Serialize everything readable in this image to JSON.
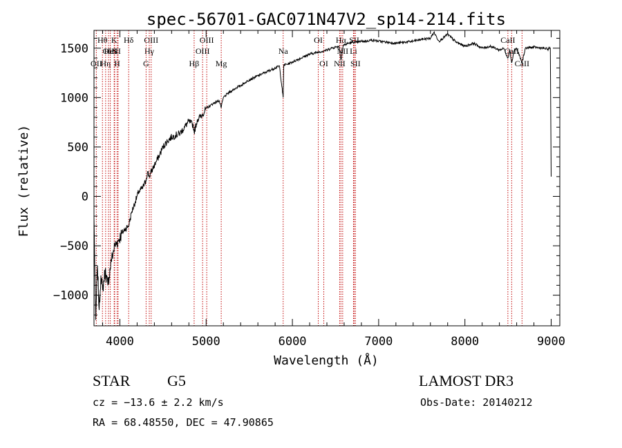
{
  "chart_data": {
    "type": "line",
    "title": "spec-56701-GAC071N47V2_sp14-214.fits",
    "xlabel": "Wavelength (Å)",
    "ylabel": "Flux (relative)",
    "xlim": [
      3700,
      9100
    ],
    "ylim": [
      -1310,
      1680
    ],
    "x_ticks": [
      4000,
      5000,
      6000,
      7000,
      8000,
      9000
    ],
    "x_tick_labels": [
      "4000",
      "5000",
      "6000",
      "7000",
      "8000",
      "9000"
    ],
    "y_ticks": [
      -1000,
      -500,
      0,
      500,
      1000,
      1500
    ],
    "y_tick_labels": [
      "−1000",
      "−500",
      "0",
      "500",
      "1000",
      "1500"
    ],
    "series": [
      {
        "name": "spectrum",
        "x": [
          3700,
          3720,
          3740,
          3760,
          3780,
          3800,
          3830,
          3860,
          3900,
          3940,
          3980,
          4020,
          4060,
          4100,
          4140,
          4180,
          4220,
          4260,
          4300,
          4320,
          4340,
          4380,
          4420,
          4460,
          4500,
          4550,
          4600,
          4650,
          4700,
          4750,
          4800,
          4850,
          4861,
          4900,
          4950,
          5000,
          5050,
          5100,
          5150,
          5175,
          5200,
          5250,
          5300,
          5350,
          5400,
          5450,
          5500,
          5550,
          5600,
          5650,
          5700,
          5750,
          5800,
          5850,
          5893,
          5900,
          5950,
          6000,
          6050,
          6100,
          6150,
          6200,
          6250,
          6300,
          6350,
          6400,
          6450,
          6500,
          6540,
          6563,
          6590,
          6620,
          6650,
          6700,
          6750,
          6800,
          6850,
          6900,
          6950,
          7000,
          7100,
          7200,
          7300,
          7400,
          7500,
          7600,
          7640,
          7700,
          7800,
          7900,
          8000,
          8100,
          8200,
          8300,
          8400,
          8450,
          8498,
          8520,
          8542,
          8570,
          8600,
          8662,
          8700,
          8800,
          8900,
          8960,
          8990,
          9000
        ],
        "values": [
          -200,
          -1250,
          -700,
          -1150,
          -800,
          -950,
          -750,
          -900,
          -650,
          -500,
          -450,
          -380,
          -330,
          -300,
          -150,
          -50,
          50,
          80,
          150,
          250,
          200,
          280,
          350,
          420,
          500,
          560,
          600,
          620,
          640,
          700,
          760,
          720,
          650,
          780,
          820,
          890,
          920,
          950,
          970,
          900,
          1000,
          1040,
          1070,
          1100,
          1120,
          1150,
          1180,
          1200,
          1220,
          1240,
          1260,
          1280,
          1300,
          1320,
          1000,
          1330,
          1340,
          1360,
          1380,
          1400,
          1420,
          1440,
          1450,
          1460,
          1470,
          1480,
          1500,
          1510,
          1520,
          1380,
          1530,
          1540,
          1550,
          1560,
          1560,
          1570,
          1570,
          1580,
          1580,
          1570,
          1560,
          1550,
          1560,
          1570,
          1590,
          1600,
          1660,
          1570,
          1640,
          1560,
          1520,
          1550,
          1500,
          1520,
          1480,
          1500,
          1400,
          1480,
          1350,
          1470,
          1500,
          1350,
          1500,
          1510,
          1500,
          1490,
          1500,
          200
        ]
      }
    ],
    "line_markers": [
      {
        "name": "OII",
        "wavelength": 3727,
        "row": 3
      },
      {
        "name": "Hθ",
        "wavelength": 3798,
        "row": 1
      },
      {
        "name": "Hη",
        "wavelength": 3835,
        "row": 3
      },
      {
        "name": "OII",
        "wavelength": 3868,
        "row": 2
      },
      {
        "name": "HeI",
        "wavelength": 3889,
        "row": 2
      },
      {
        "name": "K",
        "wavelength": 3934,
        "row": 1
      },
      {
        "name": "S",
        "wavelength": 3940,
        "row": 2
      },
      {
        "name": "H",
        "wavelength": 3968,
        "row": 3
      },
      {
        "name": "II",
        "wavelength": 3980,
        "row": 2
      },
      {
        "name": "Hδ",
        "wavelength": 4102,
        "row": 1
      },
      {
        "name": "OIII",
        "wavelength": 4363,
        "row": 1
      },
      {
        "name": "Hγ",
        "wavelength": 4341,
        "row": 2
      },
      {
        "name": "G",
        "wavelength": 4304,
        "row": 3
      },
      {
        "name": "Hβ",
        "wavelength": 4861,
        "row": 3
      },
      {
        "name": "OIII",
        "wavelength": 4959,
        "row": 2
      },
      {
        "name": "OIII",
        "wavelength": 5007,
        "row": 1
      },
      {
        "name": "Mg",
        "wavelength": 5175,
        "row": 3
      },
      {
        "name": "Na",
        "wavelength": 5893,
        "row": 2
      },
      {
        "name": "OI",
        "wavelength": 6300,
        "row": 1
      },
      {
        "name": "OI",
        "wavelength": 6364,
        "row": 3
      },
      {
        "name": "Hα",
        "wavelength": 6563,
        "row": 1
      },
      {
        "name": "NII",
        "wavelength": 6548,
        "row": 3
      },
      {
        "name": "NII",
        "wavelength": 6583,
        "row": 2
      },
      {
        "name": "SII",
        "wavelength": 6717,
        "row": 1
      },
      {
        "name": "Li",
        "wavelength": 6708,
        "row": 2
      },
      {
        "name": "SII",
        "wavelength": 6731,
        "row": 3
      },
      {
        "name": "CaII",
        "wavelength": 8498,
        "row": 1
      },
      {
        "name": "CaII",
        "wavelength": 8542,
        "row": 2
      },
      {
        "name": "CaII",
        "wavelength": 8662,
        "row": 3
      }
    ]
  },
  "info": {
    "object_class": "STAR",
    "subclass": "G5",
    "survey": "LAMOST DR3",
    "redshift": "cz = −13.6 ± 2.2 km/s",
    "obs_date": "Obs-Date: 20140212",
    "coordinates": "RA =  68.48550, DEC =  47.90865"
  },
  "colors": {
    "line_marker": "#c00000",
    "spectrum": "#000000"
  }
}
